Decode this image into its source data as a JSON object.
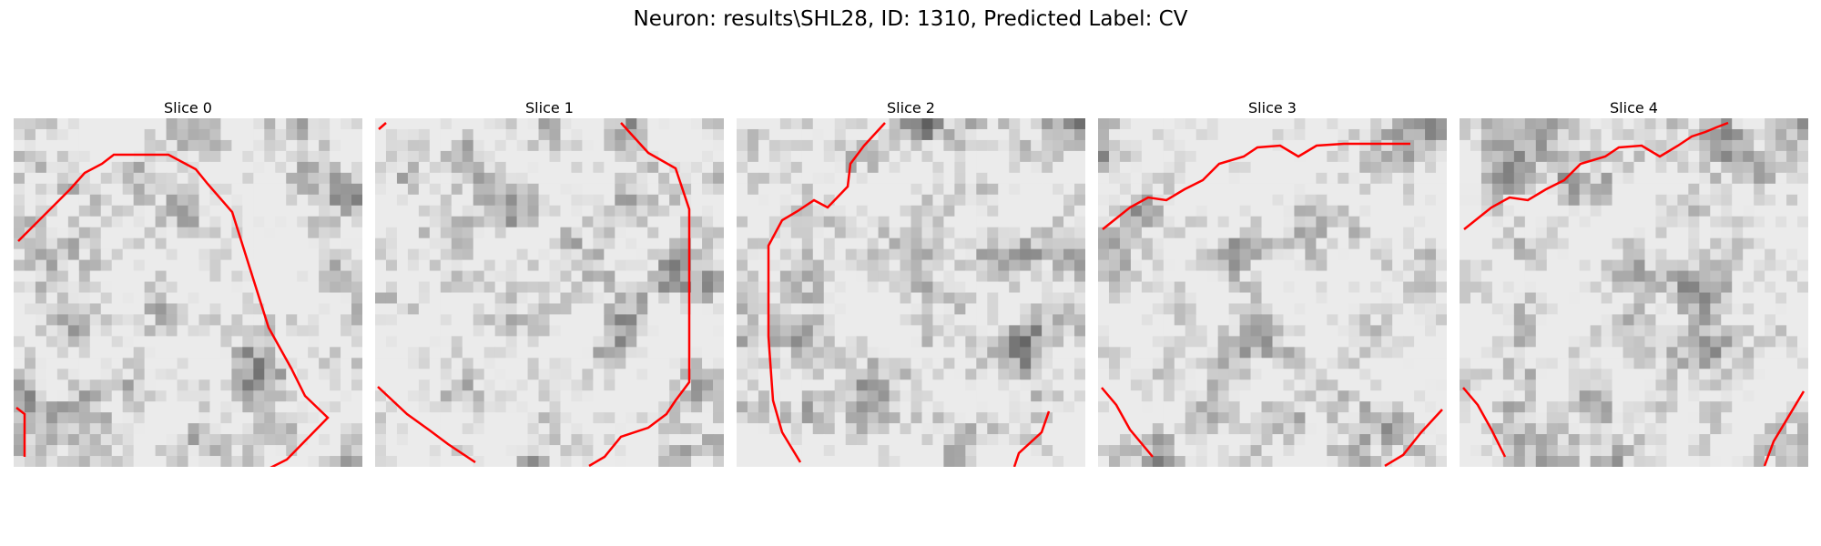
{
  "figure": {
    "title": "Neuron: results\\SHL28, ID: 1310, Predicted Label: CV"
  },
  "panels": [
    {
      "title": "Slice 0"
    },
    {
      "title": "Slice 1"
    },
    {
      "title": "Slice 2"
    },
    {
      "title": "Slice 3"
    },
    {
      "title": "Slice 4"
    }
  ],
  "colors": {
    "contour": "#ff0000",
    "background": "#ffffff"
  }
}
